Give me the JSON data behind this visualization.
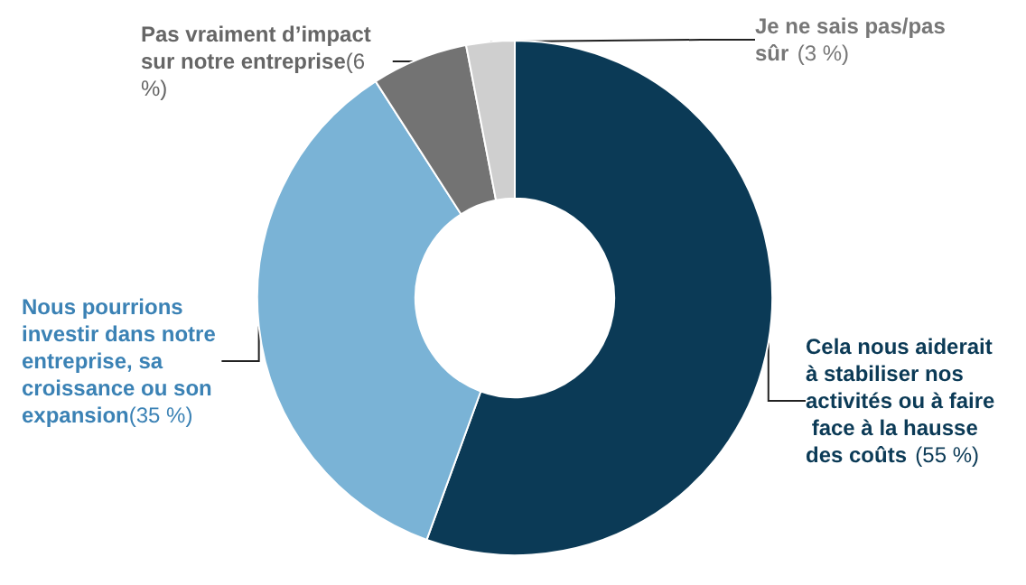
{
  "chart_data": {
    "type": "donut",
    "categories": [
      "Cela nous aiderait à stabiliser nos activités ou à faire face à la hausse des coûts",
      "Nous pourrions investir dans notre entreprise, sa croissance ou son expansion",
      "Pas vraiment d’impact sur notre entreprise",
      "Je ne sais pas/pas sûr"
    ],
    "values": [
      55,
      35,
      6,
      3
    ],
    "value_labels": [
      "(55 %)",
      "(35 %)",
      "(6 %)",
      "(3 %)"
    ],
    "colors": [
      "#0b3a56",
      "#7ab3d6",
      "#737373",
      "#cfcfcf"
    ],
    "legend": false
  }
}
